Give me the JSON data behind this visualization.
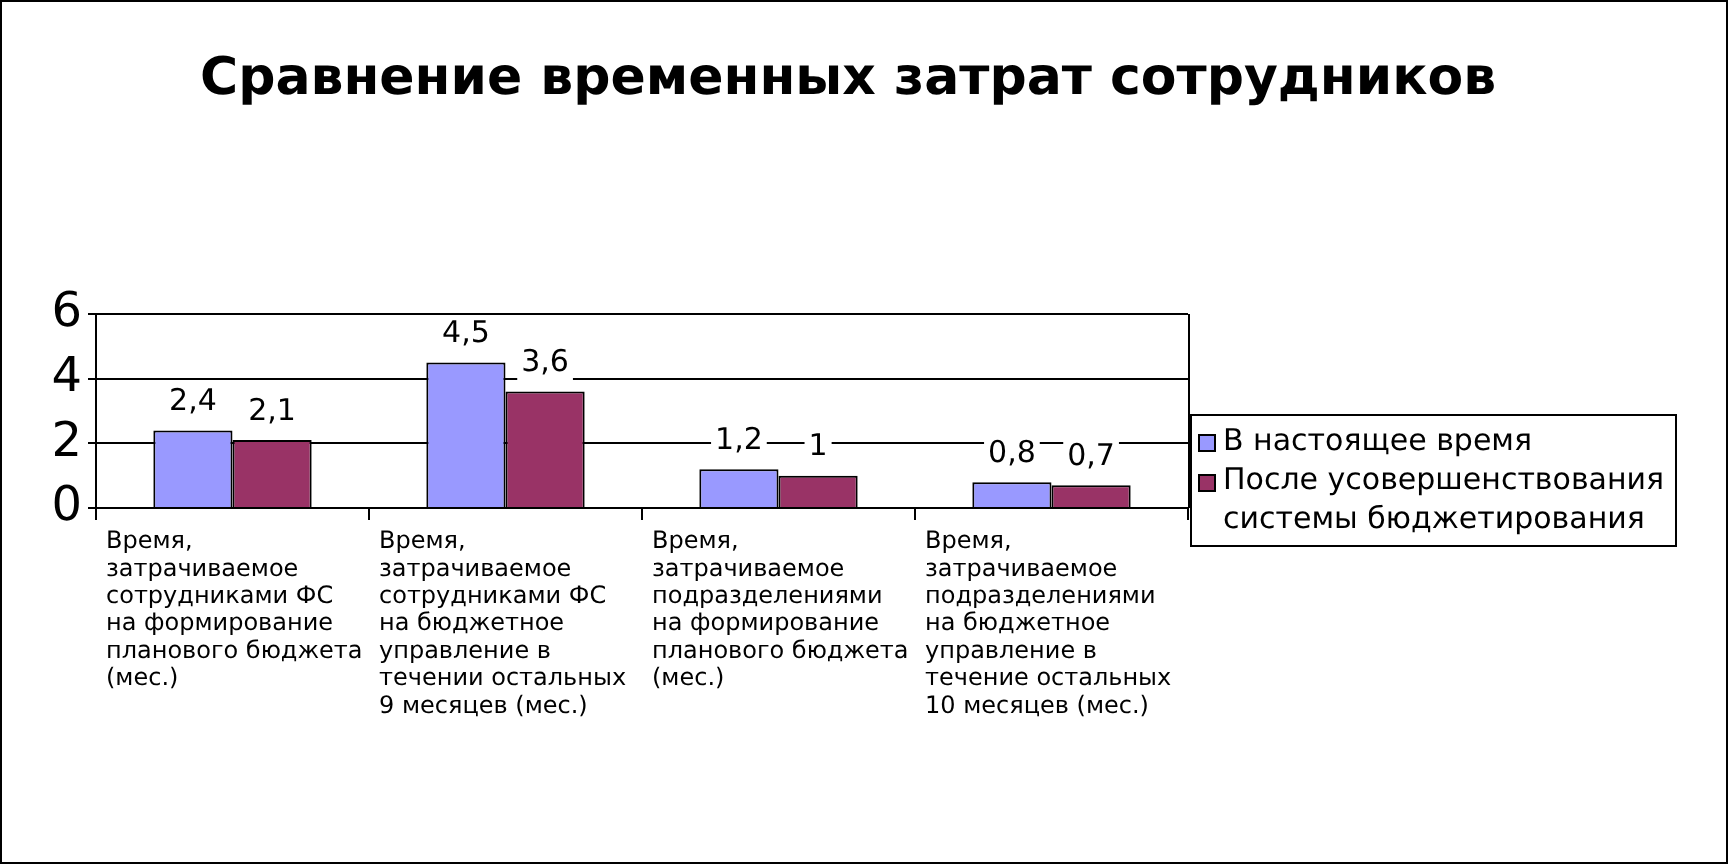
{
  "chart_data": {
    "type": "bar",
    "title": "Сравнение временных затрат сотрудников",
    "categories": [
      "Время, затрачиваемое сотрудниками ФС на формирование планового бюджета (мес.)",
      "Время, затрачиваемое сотрудниками ФС на бюджетное управление в течении остальных 9 месяцев (мес.)",
      "Время, затрачиваемое подразделениями на формирование планового бюджета (мес.)",
      "Время, затрачиваемое подразделениями на бюджетное управление в течение остальных 10 месяцев (мес.)"
    ],
    "series": [
      {
        "name": "В настоящее время",
        "color": "#9999ff",
        "values": [
          2.4,
          4.5,
          1.2,
          0.8
        ],
        "value_labels": [
          "2,4",
          "4,5",
          "1,2",
          "0,8"
        ]
      },
      {
        "name": "После усовершенствования системы бюджетирования",
        "color": "#993366",
        "values": [
          2.1,
          3.6,
          1,
          0.7
        ],
        "value_labels": [
          "2,1",
          "3,6",
          "1",
          "0,7"
        ]
      }
    ],
    "ylim": [
      0,
      6
    ],
    "yticks": [
      0,
      2,
      4,
      6
    ],
    "grid": "y",
    "legend": "right"
  }
}
